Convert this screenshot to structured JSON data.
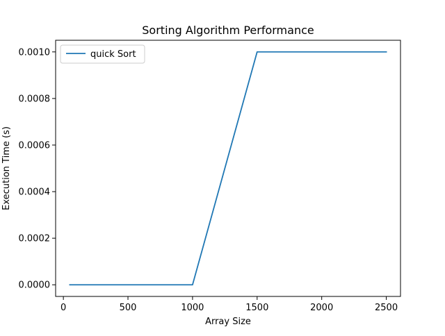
{
  "chart_data": {
    "type": "line",
    "title": "Sorting Algorithm Performance",
    "xlabel": "Array Size",
    "ylabel": "Execution Time (s)",
    "xlim": [
      -60,
      2610
    ],
    "ylim": [
      -5e-05,
      0.00105
    ],
    "xticks": [
      0,
      500,
      1000,
      1500,
      2000,
      2500
    ],
    "xtick_labels": [
      "0",
      "500",
      "1000",
      "1500",
      "2000",
      "2500"
    ],
    "yticks": [
      0.0,
      0.0002,
      0.0004,
      0.0006,
      0.0008,
      0.001
    ],
    "ytick_labels": [
      "0.0000",
      "0.0002",
      "0.0004",
      "0.0006",
      "0.0008",
      "0.0010"
    ],
    "grid": false,
    "legend_position": "top-left",
    "series": [
      {
        "name": "quick Sort",
        "color": "#1f77b4",
        "x": [
          50,
          1000,
          1500,
          2500
        ],
        "y": [
          0.0,
          0.0,
          0.001,
          0.001
        ]
      }
    ]
  }
}
